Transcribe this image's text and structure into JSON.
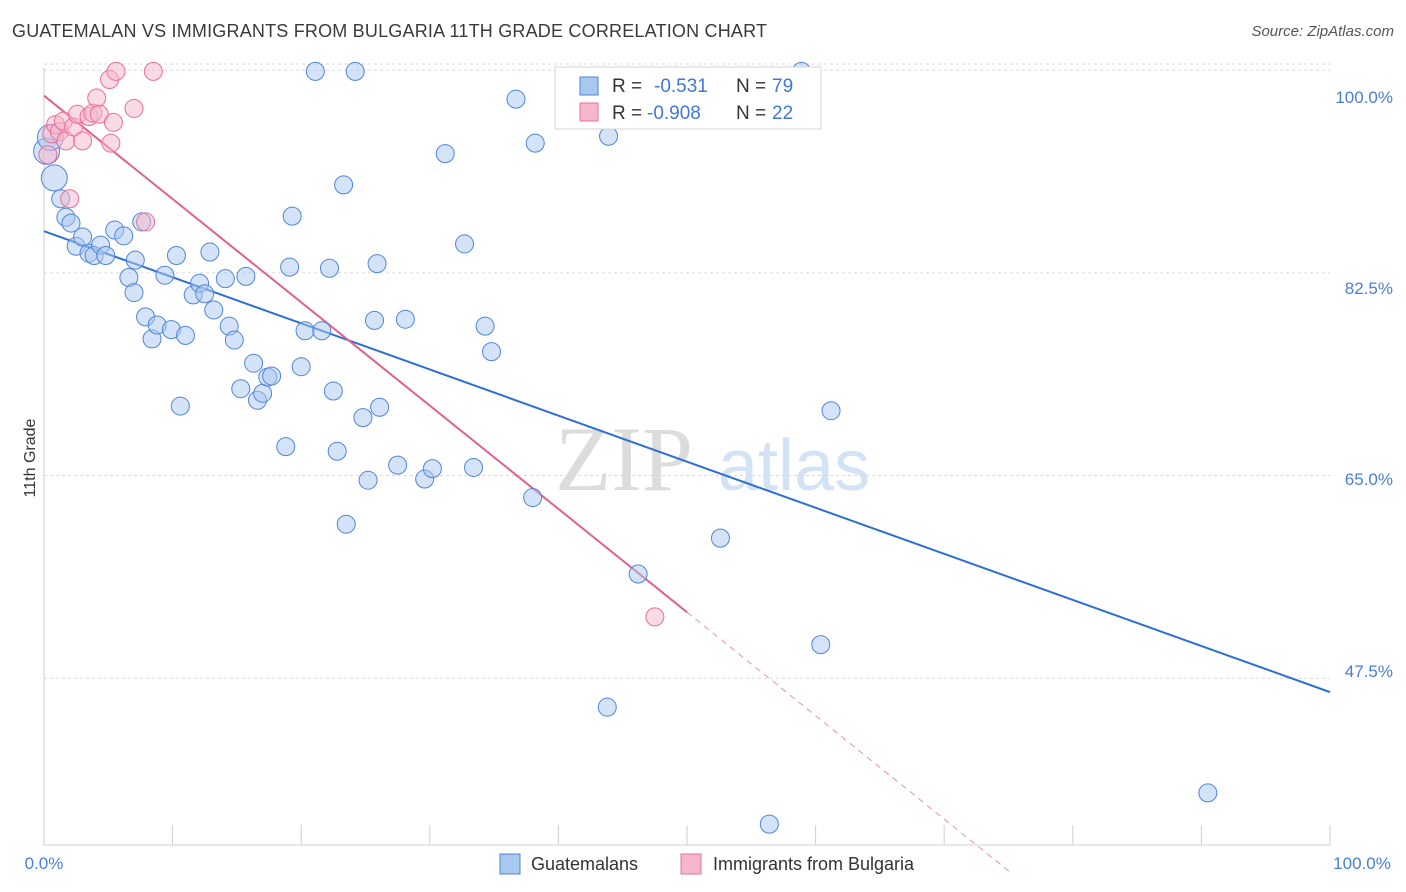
{
  "title": "GUATEMALAN VS IMMIGRANTS FROM BULGARIA 11TH GRADE CORRELATION CHART",
  "source": "Source: ZipAtlas.com",
  "watermark": {
    "zip": "ZIP",
    "atlas": "atlas"
  },
  "colors": {
    "blue": "#4f86d6",
    "blue_fill": "#a9c8ef",
    "blue_line": "#2e6fd4",
    "pink": "#ea6f97",
    "pink_fill": "#f6b6cb",
    "pink_line": "#e0608e",
    "grid": "#d9d9d9",
    "axis_text": "#4a7fd6"
  },
  "legend": {
    "r_label": "R =",
    "n_label": "N =",
    "rows": [
      {
        "r_value": "-0.531",
        "n_value": "79",
        "color": "#a9c8ef"
      },
      {
        "r_value": "-0.908",
        "n_value": "22",
        "color": "#f6b6cb"
      }
    ]
  },
  "bottom_legend": [
    {
      "label": "Guatemalans",
      "color": "#a9c8ef"
    },
    {
      "label": "Immigrants from Bulgaria",
      "color": "#f6b6cb"
    }
  ],
  "chart_data": {
    "type": "scatter",
    "title": "GUATEMALAN VS IMMIGRANTS FROM BULGARIA 11TH GRADE CORRELATION CHART",
    "xlabel": "",
    "ylabel": "11th Grade",
    "xlim": [
      0,
      100
    ],
    "ylim": [
      33.1,
      101.4
    ],
    "x_tick_labels": [
      "0.0%",
      "100.0%"
    ],
    "y_ticks": [
      47.5,
      65.0,
      82.5,
      100.0
    ],
    "y_tick_labels": [
      "47.5%",
      "65.0%",
      "82.5%",
      "100.0%"
    ],
    "legend_placement": "top-center",
    "series": [
      {
        "name": "Guatemalans",
        "color": "#a9c8ef",
        "trend": {
          "x": [
            0,
            100
          ],
          "y": [
            86.1,
            46.3
          ]
        },
        "points": [
          {
            "x": 0.2,
            "y": 93.0,
            "s": "l"
          },
          {
            "x": 0.5,
            "y": 94.2,
            "s": "l"
          },
          {
            "x": 0.8,
            "y": 90.7,
            "s": "l"
          },
          {
            "x": 1.3,
            "y": 88.9
          },
          {
            "x": 1.7,
            "y": 87.3
          },
          {
            "x": 2.1,
            "y": 86.8
          },
          {
            "x": 2.5,
            "y": 84.8
          },
          {
            "x": 3.0,
            "y": 85.6
          },
          {
            "x": 3.5,
            "y": 84.2
          },
          {
            "x": 3.9,
            "y": 84.0
          },
          {
            "x": 4.4,
            "y": 84.9
          },
          {
            "x": 4.8,
            "y": 84.0
          },
          {
            "x": 5.5,
            "y": 86.2
          },
          {
            "x": 6.2,
            "y": 85.7
          },
          {
            "x": 6.6,
            "y": 82.1
          },
          {
            "x": 7.0,
            "y": 80.8
          },
          {
            "x": 7.1,
            "y": 83.6
          },
          {
            "x": 7.6,
            "y": 86.9
          },
          {
            "x": 7.9,
            "y": 78.7
          },
          {
            "x": 8.4,
            "y": 76.8
          },
          {
            "x": 8.8,
            "y": 78.0
          },
          {
            "x": 9.4,
            "y": 82.3
          },
          {
            "x": 9.9,
            "y": 77.6
          },
          {
            "x": 10.3,
            "y": 84.0
          },
          {
            "x": 10.6,
            "y": 71.0
          },
          {
            "x": 11.0,
            "y": 77.1
          },
          {
            "x": 11.6,
            "y": 80.6
          },
          {
            "x": 12.1,
            "y": 81.6
          },
          {
            "x": 12.5,
            "y": 80.7
          },
          {
            "x": 12.9,
            "y": 84.3
          },
          {
            "x": 13.2,
            "y": 79.3
          },
          {
            "x": 14.1,
            "y": 82.0
          },
          {
            "x": 14.4,
            "y": 77.9
          },
          {
            "x": 14.8,
            "y": 76.7
          },
          {
            "x": 15.3,
            "y": 72.5
          },
          {
            "x": 15.7,
            "y": 82.2
          },
          {
            "x": 16.3,
            "y": 74.7
          },
          {
            "x": 16.6,
            "y": 71.5
          },
          {
            "x": 17.0,
            "y": 72.1
          },
          {
            "x": 17.4,
            "y": 73.5
          },
          {
            "x": 17.7,
            "y": 73.6
          },
          {
            "x": 18.8,
            "y": 67.5
          },
          {
            "x": 19.1,
            "y": 83.0
          },
          {
            "x": 19.3,
            "y": 87.4
          },
          {
            "x": 20.0,
            "y": 74.4
          },
          {
            "x": 20.3,
            "y": 77.5
          },
          {
            "x": 21.1,
            "y": 99.9
          },
          {
            "x": 21.6,
            "y": 77.5
          },
          {
            "x": 22.2,
            "y": 82.9
          },
          {
            "x": 22.5,
            "y": 72.3
          },
          {
            "x": 22.8,
            "y": 67.1
          },
          {
            "x": 23.3,
            "y": 90.1
          },
          {
            "x": 23.5,
            "y": 60.8
          },
          {
            "x": 24.2,
            "y": 99.9
          },
          {
            "x": 24.8,
            "y": 70.0
          },
          {
            "x": 25.2,
            "y": 64.6
          },
          {
            "x": 25.7,
            "y": 78.4
          },
          {
            "x": 25.9,
            "y": 83.3
          },
          {
            "x": 26.1,
            "y": 70.9
          },
          {
            "x": 27.5,
            "y": 65.9
          },
          {
            "x": 28.1,
            "y": 78.5
          },
          {
            "x": 29.6,
            "y": 64.7
          },
          {
            "x": 30.2,
            "y": 65.6
          },
          {
            "x": 31.2,
            "y": 92.8
          },
          {
            "x": 32.7,
            "y": 85.0
          },
          {
            "x": 33.4,
            "y": 65.7
          },
          {
            "x": 34.3,
            "y": 77.9
          },
          {
            "x": 34.8,
            "y": 75.7
          },
          {
            "x": 36.7,
            "y": 97.5
          },
          {
            "x": 38.0,
            "y": 63.1
          },
          {
            "x": 38.2,
            "y": 93.7
          },
          {
            "x": 43.8,
            "y": 45.0
          },
          {
            "x": 43.9,
            "y": 94.3
          },
          {
            "x": 46.2,
            "y": 56.5
          },
          {
            "x": 52.6,
            "y": 59.6
          },
          {
            "x": 56.4,
            "y": 34.9
          },
          {
            "x": 58.9,
            "y": 99.9
          },
          {
            "x": 60.4,
            "y": 50.4
          },
          {
            "x": 61.2,
            "y": 70.6
          },
          {
            "x": 90.5,
            "y": 37.6
          }
        ]
      },
      {
        "name": "Immigrants from Bulgaria",
        "color": "#f6b6cb",
        "trend": {
          "x": [
            0,
            50
          ],
          "y": [
            97.8,
            53.2
          ]
        },
        "trend_dashed": {
          "x": [
            50,
            75.3
          ],
          "y": [
            53.2,
            30.6
          ]
        },
        "points": [
          {
            "x": 0.3,
            "y": 92.7
          },
          {
            "x": 0.6,
            "y": 94.5
          },
          {
            "x": 0.9,
            "y": 95.3
          },
          {
            "x": 1.2,
            "y": 94.7
          },
          {
            "x": 1.5,
            "y": 95.6
          },
          {
            "x": 1.7,
            "y": 93.9
          },
          {
            "x": 2.0,
            "y": 88.9
          },
          {
            "x": 2.3,
            "y": 95.1
          },
          {
            "x": 2.6,
            "y": 96.2
          },
          {
            "x": 3.0,
            "y": 93.9
          },
          {
            "x": 3.5,
            "y": 96.0
          },
          {
            "x": 3.8,
            "y": 96.3
          },
          {
            "x": 4.1,
            "y": 97.6
          },
          {
            "x": 4.3,
            "y": 96.2
          },
          {
            "x": 5.1,
            "y": 99.2
          },
          {
            "x": 5.2,
            "y": 93.7
          },
          {
            "x": 5.4,
            "y": 95.5
          },
          {
            "x": 5.6,
            "y": 99.9
          },
          {
            "x": 7.0,
            "y": 96.7
          },
          {
            "x": 7.9,
            "y": 86.9
          },
          {
            "x": 8.5,
            "y": 99.9
          },
          {
            "x": 47.5,
            "y": 52.8
          }
        ]
      }
    ]
  }
}
